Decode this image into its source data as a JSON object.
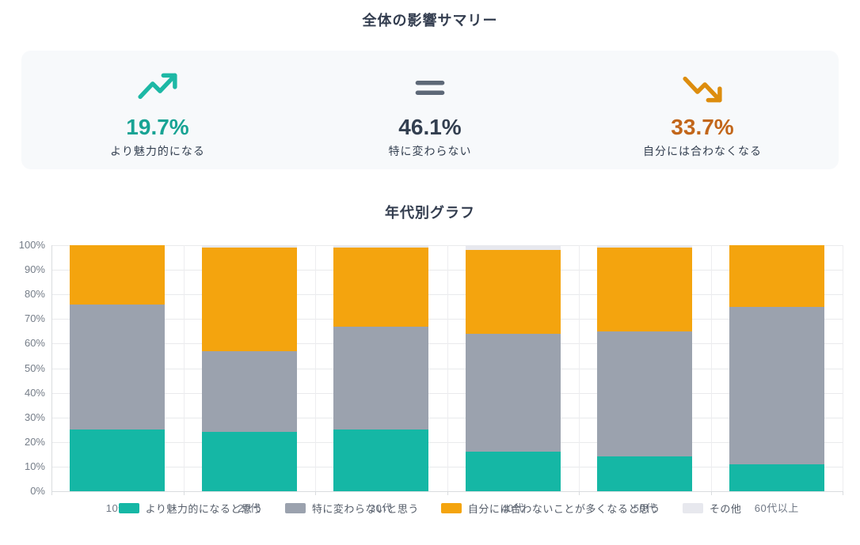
{
  "page": {
    "title": "全体の影響サマリー",
    "chart_title": "年代別グラフ"
  },
  "summary": {
    "items": [
      {
        "icon": "trending-up-icon",
        "value": "19.7%",
        "label": "より魅力的になる",
        "color": "#18a394"
      },
      {
        "icon": "equals-icon",
        "value": "46.1%",
        "label": "特に変わらない",
        "color": "#333f50"
      },
      {
        "icon": "trending-down-icon",
        "value": "33.7%",
        "label": "自分には合わなくなる",
        "color": "#c2661a"
      }
    ]
  },
  "chart_data": {
    "type": "bar",
    "stacked": true,
    "percent": true,
    "title": "年代別グラフ",
    "categories": [
      "10代",
      "20代",
      "30代",
      "40代",
      "50代",
      "60代以上"
    ],
    "series": [
      {
        "name": "より魅力的になると思う",
        "color": "#15b7a5",
        "values": [
          25,
          24,
          25,
          16,
          14,
          11
        ]
      },
      {
        "name": "特に変わらないと思う",
        "color": "#9ba2ae",
        "values": [
          51,
          33,
          42,
          48,
          51,
          64
        ]
      },
      {
        "name": "自分には合わないことが多くなると思う",
        "color": "#f4a40e",
        "values": [
          24,
          42,
          32,
          34,
          34,
          25
        ]
      },
      {
        "name": "その他",
        "color": "#e7e8ee",
        "values": [
          0,
          1,
          1,
          2,
          1,
          0
        ]
      }
    ],
    "xlabel": "",
    "ylabel": "",
    "ylim": [
      0,
      100
    ],
    "yticks": [
      "0%",
      "10%",
      "20%",
      "30%",
      "40%",
      "50%",
      "60%",
      "70%",
      "80%",
      "90%",
      "100%"
    ],
    "grid": true,
    "legend_position": "bottom"
  }
}
